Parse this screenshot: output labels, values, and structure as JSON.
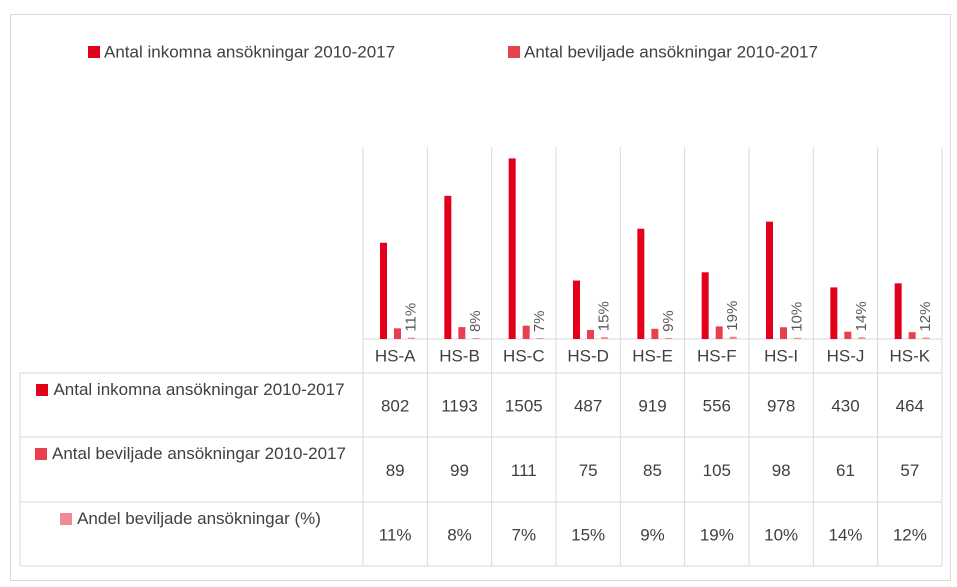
{
  "chart_data": {
    "type": "bar",
    "categories": [
      "HS-A",
      "HS-B",
      "HS-C",
      "HS-D",
      "HS-E",
      "HS-F",
      "HS-I",
      "HS-J",
      "HS-K"
    ],
    "series": [
      {
        "name": "Antal inkomna ansökningar 2010-2017",
        "color": "#e2001a",
        "values": [
          802,
          1193,
          1505,
          487,
          919,
          556,
          978,
          430,
          464
        ]
      },
      {
        "name": "Antal beviljade ansökningar 2010-2017",
        "color": "#e8404f",
        "values": [
          89,
          99,
          111,
          75,
          85,
          105,
          98,
          61,
          57
        ]
      },
      {
        "name": "Andel beviljade ansökningar (%)",
        "color": "#f08a94",
        "values": [
          11,
          8,
          7,
          15,
          9,
          19,
          10,
          14,
          12
        ],
        "value_labels": [
          "11%",
          "8%",
          "7%",
          "15%",
          "9%",
          "19%",
          "10%",
          "14%",
          "12%"
        ]
      }
    ],
    "ylim": [
      0,
      1600
    ],
    "legend": "top"
  }
}
